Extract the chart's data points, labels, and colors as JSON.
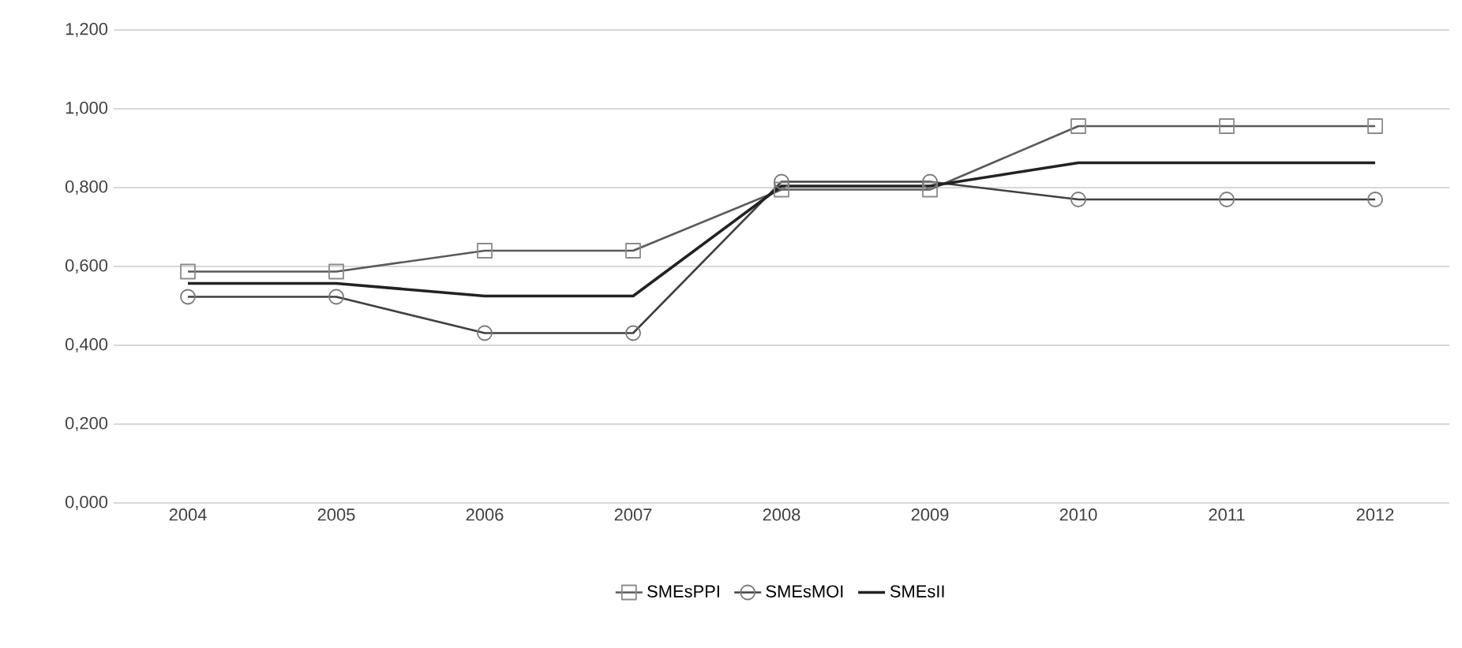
{
  "chart_data": {
    "type": "line",
    "categories": [
      "2004",
      "2005",
      "2006",
      "2007",
      "2008",
      "2009",
      "2010",
      "2011",
      "2012"
    ],
    "series": [
      {
        "name": "SMEsPPI",
        "color": "#5a5a5a",
        "marker": "square",
        "values": [
          0.587,
          0.587,
          0.64,
          0.64,
          0.795,
          0.795,
          0.956,
          0.956,
          0.956
        ]
      },
      {
        "name": "SMEsMOI",
        "color": "#404040",
        "marker": "circle",
        "values": [
          0.523,
          0.523,
          0.431,
          0.431,
          0.815,
          0.815,
          0.77,
          0.77,
          0.77
        ]
      },
      {
        "name": "SMEsII",
        "color": "#222222",
        "marker": "none",
        "values": [
          0.557,
          0.557,
          0.525,
          0.525,
          0.804,
          0.804,
          0.863,
          0.863,
          0.863
        ]
      }
    ],
    "ylim": [
      0,
      1.2
    ],
    "yticks": [
      {
        "value": 0,
        "label": "0,000"
      },
      {
        "value": 0.2,
        "label": "0,200"
      },
      {
        "value": 0.4,
        "label": "0,400"
      },
      {
        "value": 0.6,
        "label": "0,600"
      },
      {
        "value": 0.8,
        "label": "0,800"
      },
      {
        "value": 1.0,
        "label": "1,000"
      },
      {
        "value": 1.2,
        "label": "1,200"
      }
    ],
    "grid": "y",
    "legend": "bottom"
  }
}
